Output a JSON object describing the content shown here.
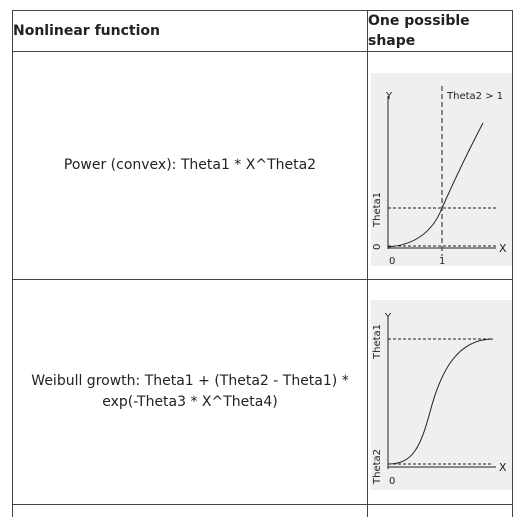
{
  "table": {
    "headers": {
      "function": "Nonlinear function",
      "shape": "One possible shape"
    },
    "rows": [
      {
        "function": "Power (convex): Theta1 * X^Theta2",
        "plot": {
          "y_axis": "Y",
          "x_axis": "X",
          "condition": "Theta2 > 1",
          "y_level_label": "Theta1",
          "y_zero": "0",
          "x_zero": "0",
          "x_one": "1"
        }
      },
      {
        "function_line1": "Weibull growth: Theta1 + (Theta2 - Theta1) *",
        "function_line2": "exp(-Theta3 * X^Theta4)",
        "plot": {
          "y_axis": "Y",
          "x_axis": "X",
          "upper_label": "Theta1",
          "lower_label": "Theta2",
          "x_zero": "0"
        }
      }
    ]
  },
  "colors": {
    "plot_background": "#efefef",
    "line": "#222222",
    "border": "#444444"
  }
}
